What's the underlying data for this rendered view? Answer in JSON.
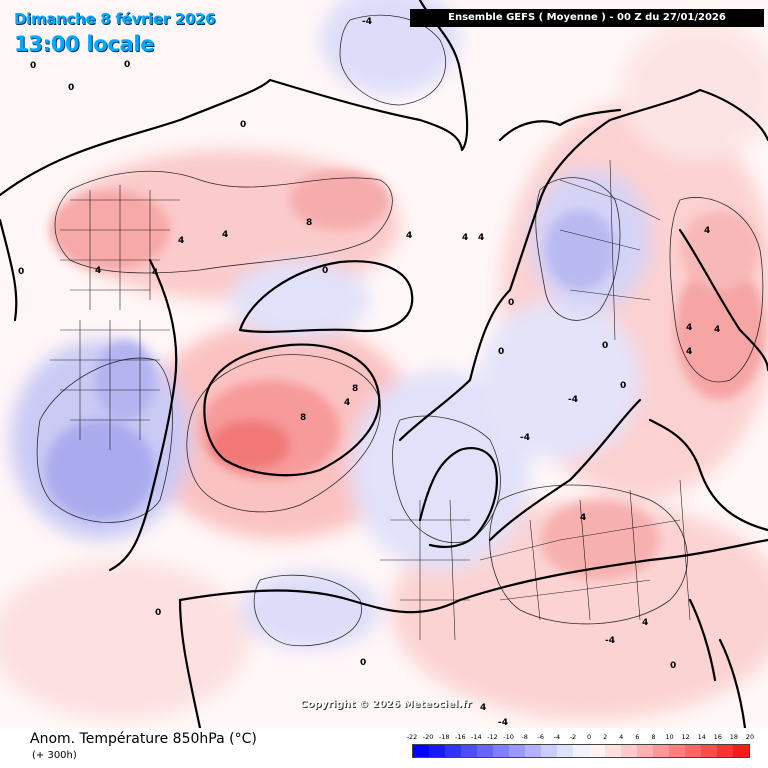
{
  "header": {
    "date": "Dimanche 8 février 2026",
    "time": "13:00 locale",
    "model": "Ensemble GEFS  ( Moyenne )  -  00 Z du 27/01/2026"
  },
  "map": {
    "projection": "polar stereographic, North Pole centered",
    "variable": "850 hPa temperature anomaly",
    "contour_interval_c": 4,
    "contour_labels": [
      "-4",
      "-4",
      "-4",
      "-4",
      "-4",
      "0",
      "0",
      "0",
      "0",
      "0",
      "0",
      "0",
      "0",
      "0",
      "0",
      "0",
      "0",
      "0",
      "4",
      "4",
      "4",
      "4",
      "4",
      "4",
      "4",
      "4",
      "4",
      "4",
      "4",
      "4",
      "4",
      "4",
      "4",
      "8",
      "8",
      "8"
    ],
    "colors": {
      "cold": "#8080ff",
      "warm": "#ff6060",
      "coast": "#000000",
      "borders": "#000000"
    }
  },
  "copyright": "Copyright © 2026 Meteociel.fr",
  "footer": {
    "title": "Anom. Température 850hPa (°C)",
    "step": "(+ 300h)"
  },
  "scale": {
    "labels": [
      "-22",
      "-20",
      "-18",
      "-16",
      "-14",
      "-12",
      "-10",
      "-8",
      "-6",
      "-4",
      "-2",
      "0",
      "2",
      "4",
      "6",
      "8",
      "10",
      "12",
      "14",
      "16",
      "18",
      "20"
    ],
    "colors": [
      "#0000ff",
      "#1a1aff",
      "#3333ff",
      "#4d4dff",
      "#6666ff",
      "#7f7fff",
      "#9999ff",
      "#b2b2ff",
      "#ccccff",
      "#e0e0ff",
      "#f2f2ff",
      "#fff2f2",
      "#ffe0e0",
      "#ffcccc",
      "#ffb2b2",
      "#ff9999",
      "#ff7f7f",
      "#ff6666",
      "#ff4d4d",
      "#ff3333",
      "#ff1a1a"
    ]
  }
}
